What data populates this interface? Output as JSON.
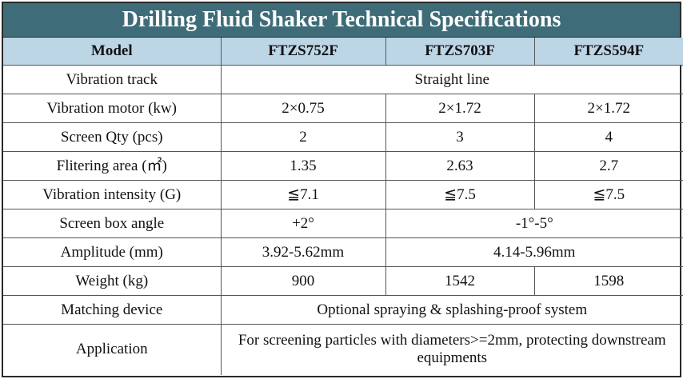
{
  "title": "Drilling Fluid Shaker Technical Specifications",
  "header": {
    "model": "Model",
    "col1": "FTZS752F",
    "col2": "FTZS703F",
    "col3": "FTZS594F"
  },
  "rows": {
    "vibration_track": {
      "label": "Vibration track",
      "all": "Straight line"
    },
    "vibration_motor": {
      "label": "Vibration motor (kw)",
      "v1": "2×0.75",
      "v2": "2×1.72",
      "v3": "2×1.72"
    },
    "screen_qty": {
      "label": "Screen Qty (pcs)",
      "v1": "2",
      "v2": "3",
      "v3": "4"
    },
    "filtering_area": {
      "label": "Flitering area (㎡)",
      "v1": "1.35",
      "v2": "2.63",
      "v3": "2.7"
    },
    "vibration_intensity": {
      "label": "Vibration intensity (G)",
      "v1": "≦7.1",
      "v2": "≦7.5",
      "v3": "≦7.5"
    },
    "screen_box_angle": {
      "label": "Screen box angle",
      "v1": "+2°",
      "v23": "-1°-5°"
    },
    "amplitude": {
      "label": "Amplitude (mm)",
      "v1": "3.92-5.62mm",
      "v23": "4.14-5.96mm"
    },
    "weight": {
      "label": "Weight (kg)",
      "v1": "900",
      "v2": "1542",
      "v3": "1598"
    },
    "matching_device": {
      "label": "Matching device",
      "all": "Optional spraying & splashing-proof system"
    },
    "application": {
      "label": "Application",
      "all": "For screening particles with diameters>=2mm, protecting downstream equipments"
    }
  },
  "colors": {
    "title_bg": "#3e6c78",
    "header_bg": "#bcd6e6"
  }
}
